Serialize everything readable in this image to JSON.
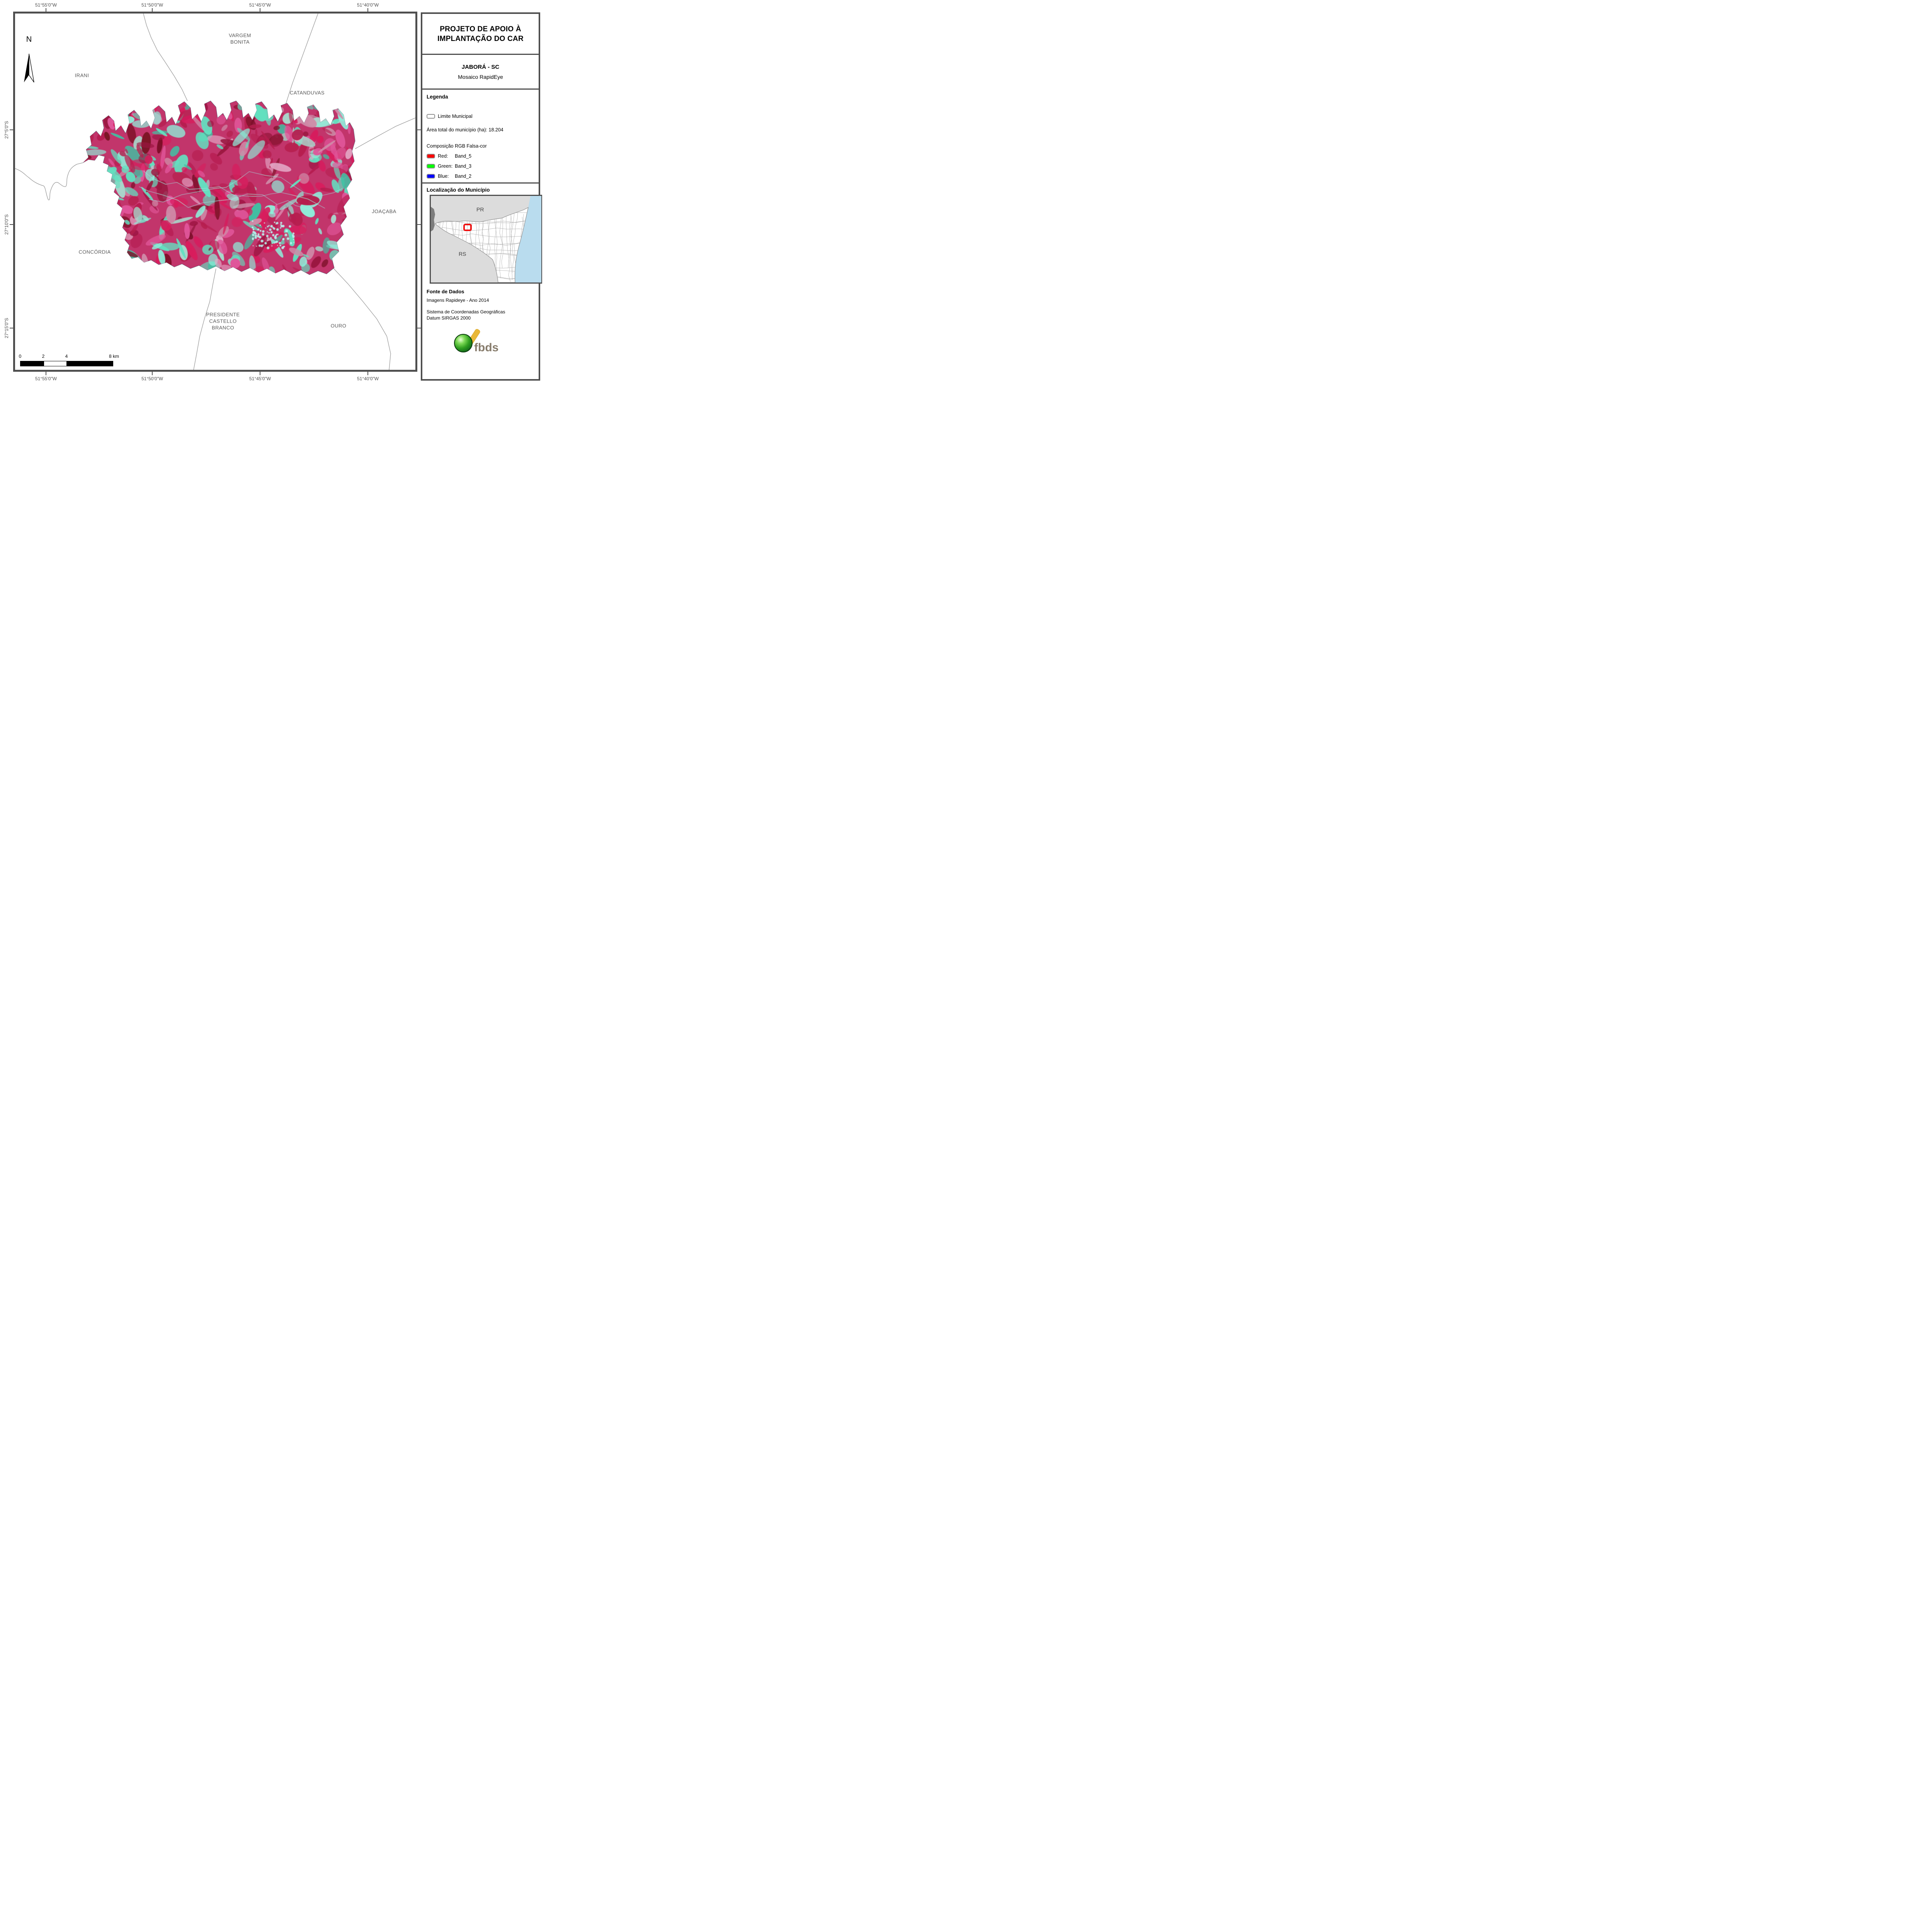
{
  "title_panel": {
    "line1": "PROJETO DE APOIO À",
    "line2": "IMPLANTAÇÃO DO CAR",
    "municipality": "JABORÁ - SC",
    "product": "Mosaico RapidEye"
  },
  "legend": {
    "header": "Legenda",
    "limite_label": "Limite Municipal",
    "area_total": "Área total do município (ha): 18.204",
    "composicao": "Composição RGB Falsa-cor",
    "bands": [
      {
        "label": "Red:",
        "band": "Band_5",
        "color": "#ff0000"
      },
      {
        "label": "Green:",
        "band": "Band_3",
        "color": "#00ff00"
      },
      {
        "label": "Blue:",
        "band": "Band_2",
        "color": "#0000ff"
      }
    ]
  },
  "localizacao": {
    "header": "Localização do Município",
    "pr": "PR",
    "rs": "RS"
  },
  "fonte": {
    "header": "Fonte de Dados",
    "line1": "Imagens Rapideye - Ano 2014",
    "line2": "Sistema de Coordenadas Geográficas",
    "line3": "Datum SIRGAS 2000"
  },
  "logo_text": "fbds",
  "map": {
    "north": "N",
    "coords_top": [
      "51°55'0\"W",
      "51°50'0\"W",
      "51°45'0\"W",
      "51°40'0\"W"
    ],
    "coords_bottom": [
      "51°55'0\"W",
      "51°50'0\"W",
      "51°45'0\"W",
      "51°40'0\"W"
    ],
    "coords_left": [
      "27°5'0\"S",
      "27°10'0\"S",
      "27°15'0\"S"
    ],
    "neighbors": {
      "vargem_bonita": [
        "VARGEM",
        "BONITA"
      ],
      "irani": "IRANI",
      "catanduvas": "CATANDUVAS",
      "joacaba": "JOAÇABA",
      "concordia": "CONCÓRDIA",
      "presidente": [
        "PRESIDENTE",
        "CASTELLO",
        "BRANCO"
      ],
      "ouro": "OURO"
    },
    "scalebar": {
      "t0": "0",
      "t2": "2",
      "t4": "4",
      "t8": "8 km"
    }
  },
  "colors": {
    "frame": "#4f4f4f",
    "coord_text": "#4d4d4d",
    "neighbor_text": "#595959",
    "boundary_line": "#9a9a9a",
    "inset": {
      "bg": "#dcdcdc",
      "ocean": "#b9dcee",
      "state": "#ffffff",
      "stroke": "#8f8f8f",
      "dark_area": "#7d7d7d",
      "highlight": "#ee1111"
    },
    "logo": {
      "sphere": "#2f9e1f",
      "band": "#e9b837",
      "text": "#877c6c"
    },
    "imagery_base": "#c2356b",
    "imagery_palette": [
      {
        "c": "#b61e4f",
        "w": 0.16
      },
      {
        "c": "#d81b5c",
        "w": 0.14
      },
      {
        "c": "#99153f",
        "w": 0.08
      },
      {
        "c": "#7c1228",
        "w": 0.07
      },
      {
        "c": "#e0559a",
        "w": 0.1
      },
      {
        "c": "#cf8ba8",
        "w": 0.08
      },
      {
        "c": "#e3a9c7",
        "w": 0.05
      },
      {
        "c": "#63e0c0",
        "w": 0.14
      },
      {
        "c": "#8eeeda",
        "w": 0.08
      },
      {
        "c": "#3ec2a4",
        "w": 0.06
      },
      {
        "c": "#a8d8cc",
        "w": 0.04
      }
    ]
  }
}
